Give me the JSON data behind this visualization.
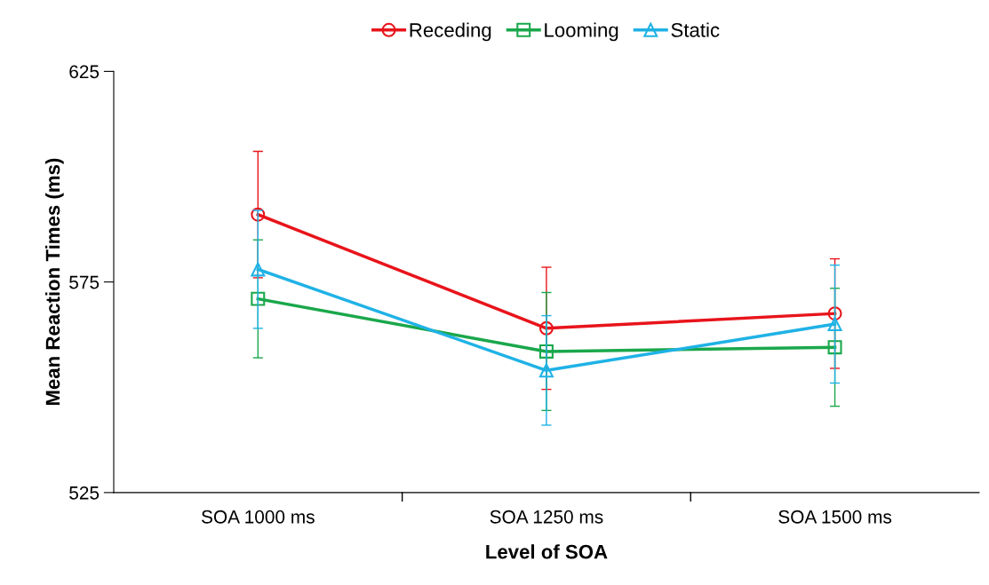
{
  "chart_data": {
    "type": "line",
    "xlabel": "Level of SOA",
    "ylabel": "Mean Reaction Times (ms)",
    "categories": [
      "SOA 1000 ms",
      "SOA 1250 ms",
      "SOA 1500 ms"
    ],
    "series": [
      {
        "name": "Receding",
        "color": "#e8141b",
        "marker": "circle",
        "values": [
          591,
          564,
          567.5
        ],
        "errors": [
          15,
          14.5,
          13
        ]
      },
      {
        "name": "Looming",
        "color": "#1aa74b",
        "marker": "square",
        "values": [
          571,
          558.5,
          559.5
        ],
        "errors": [
          14,
          14,
          14
        ]
      },
      {
        "name": "Static",
        "color": "#1fb2e6",
        "marker": "triangle",
        "values": [
          578,
          554,
          565
        ],
        "errors": [
          14,
          13,
          14
        ]
      }
    ],
    "ylim": [
      525,
      625
    ],
    "yticks": [
      525,
      575,
      625
    ],
    "grid": false,
    "legend": "top",
    "line_style": "solid"
  }
}
